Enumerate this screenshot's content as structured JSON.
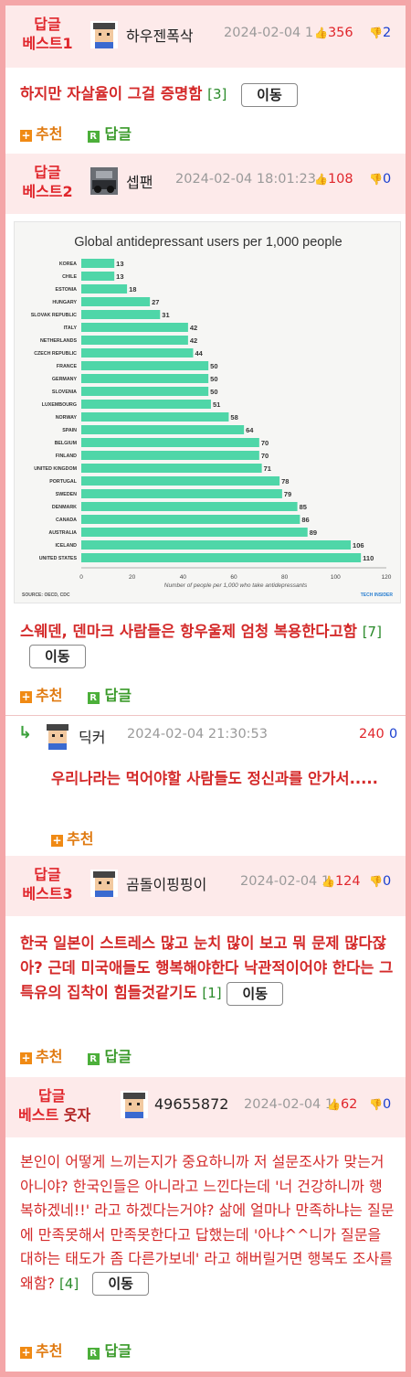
{
  "posts": [
    {
      "badge_line1": "답글",
      "badge_line2": "베스트1",
      "nickname": "하우젠폭삭",
      "date": "2024-02-04 1",
      "up_count": "356",
      "down_count": "2",
      "text": "하지만 자살율이 그걸 증명함",
      "comment_count": "[3]",
      "move_label": "이동",
      "recommend_label": "추천",
      "reply_label": "답글"
    },
    {
      "badge_line1": "답글",
      "badge_line2": "베스트2",
      "nickname": "셉팬",
      "date": "2024-02-04 18:01:23",
      "up_count": "108",
      "down_count": "0",
      "text": "스웨덴, 덴마크 사람들은 항우울제 엄청 복용한다고함",
      "comment_count": "[7]",
      "move_label": "이동",
      "recommend_label": "추천",
      "reply_label": "답글"
    },
    {
      "badge_line1": "답글",
      "badge_line2": "베스트3",
      "nickname": "곰돌이핑핑이",
      "date": "2024-02-04 1",
      "up_count": "124",
      "down_count": "0",
      "text": "한국 일본이 스트레스 많고 눈치 많이 보고 뭐 문제 많다잖아? 근데 미국애들도 행복해야한다 낙관적이어야 한다는 그 특유의 집착이 힘들것같기도",
      "comment_count": "[1]",
      "move_label": "이동",
      "recommend_label": "추천",
      "reply_label": "답글"
    },
    {
      "badge_line1": "답글",
      "badge_line2": "베스트",
      "badge_extra": "웃자",
      "nickname": "49655872",
      "date": "2024-02-04 1",
      "up_count": "62",
      "down_count": "0",
      "text": "본인이 어떻게 느끼는지가 중요하니까 저 설문조사가 맞는거 아니야? 한국인들은 아니라고 느낀다는데 '너 건강하니까 행복하겠네!!' 라고 하겠다는거야? 삶에 얼마나 만족하냐는 질문에 만족못해서 만족못한다고 답했는데 '아냐^^니가 질문을 대하는 태도가 좀 다른가보네' 라고 해버릴거면 행복도 조사를 왜함?",
      "comment_count": "[4]",
      "move_label": "이동",
      "recommend_label": "추천",
      "reply_label": "답글"
    }
  ],
  "reply": {
    "nickname": "딕커",
    "date": "2024-02-04 21:30:53",
    "up_count": "240",
    "down_count": "0",
    "text": "우리나라는 먹어야할 사람들도 정신과를 안가서.....",
    "recommend_label": "추천"
  },
  "chart_data": {
    "type": "bar",
    "orientation": "horizontal",
    "title": "Global antidepressant users per 1,000 people",
    "xlabel": "Number of people per 1,000 who take antidepressants",
    "source": "SOURCE: OECD, CDC",
    "brand": "TECH INSIDER",
    "xlim": [
      0,
      120
    ],
    "xticks": [
      "0",
      "20",
      "40",
      "60",
      "80",
      "100",
      "120"
    ],
    "bar_color": "#4fd6a8",
    "categories": [
      "KOREA",
      "CHILE",
      "ESTONIA",
      "HUNGARY",
      "SLOVAK REPUBLIC",
      "ITALY",
      "NETHERLANDS",
      "CZECH REPUBLIC",
      "FRANCE",
      "GERMANY",
      "SLOVENIA",
      "LUXEMBOURG",
      "NORWAY",
      "SPAIN",
      "BELGIUM",
      "FINLAND",
      "UNITED KINGDOM",
      "PORTUGAL",
      "SWEDEN",
      "DENMARK",
      "CANADA",
      "AUSTRALIA",
      "ICELAND",
      "UNITED STATES"
    ],
    "values": [
      13,
      13,
      18,
      27,
      31,
      42,
      42,
      44,
      50,
      50,
      50,
      51,
      58,
      64,
      70,
      70,
      71,
      78,
      79,
      85,
      86,
      89,
      106,
      110
    ]
  },
  "colors": {
    "accent_red": "#e0262c",
    "header_bg": "#fdeaea",
    "border_pink": "#f4a6a8"
  }
}
